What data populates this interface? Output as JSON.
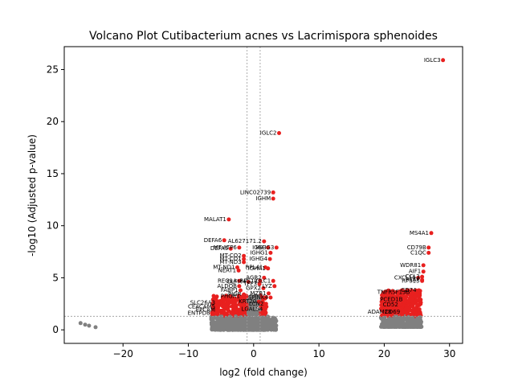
{
  "chart_data": {
    "type": "scatter",
    "title": "Volcano Plot Cutibacterium acnes vs Lacrimispora sphenoides",
    "xlabel": "log2 (fold change)",
    "ylabel": "-log10 (Adjusted p-value)",
    "xlim": [
      -29,
      32
    ],
    "ylim": [
      -1.3,
      27.2
    ],
    "xticks": [
      -20,
      -10,
      0,
      10,
      20,
      30
    ],
    "yticks": [
      0,
      5,
      10,
      15,
      20,
      25
    ],
    "thresholds": {
      "x": [
        -1,
        1
      ],
      "y": 1.3
    },
    "colors": {
      "significant": "#e8201f",
      "nonsignificant": "#808080",
      "threshold_line": "#999999"
    },
    "labeled_points": [
      {
        "label": "IGLC3",
        "x": 29.0,
        "y": 25.9
      },
      {
        "label": "IGLC2",
        "x": 3.9,
        "y": 18.9
      },
      {
        "label": "LINC02739",
        "x": 3.0,
        "y": 13.2
      },
      {
        "label": "IGHM",
        "x": 3.0,
        "y": 12.6
      },
      {
        "label": "MALAT1",
        "x": -3.8,
        "y": 10.6
      },
      {
        "label": "MS4A1",
        "x": 27.2,
        "y": 9.3
      },
      {
        "label": "DEFA6",
        "x": -4.5,
        "y": 8.6
      },
      {
        "label": "AL627171.2",
        "x": 1.6,
        "y": 8.5
      },
      {
        "label": "CD79B",
        "x": 26.8,
        "y": 7.9
      },
      {
        "label": "DEFA5",
        "x": -3.5,
        "y": 7.8
      },
      {
        "label": "MT-ATP6",
        "x": -2.2,
        "y": 7.9
      },
      {
        "label": "IGHG3",
        "x": 3.5,
        "y": 7.9
      },
      {
        "label": "IGKC",
        "x": 2.2,
        "y": 7.9
      },
      {
        "label": "IGHG1",
        "x": 2.6,
        "y": 7.4
      },
      {
        "label": "C1QC",
        "x": 26.8,
        "y": 7.4
      },
      {
        "label": "MT-CO2",
        "x": -1.5,
        "y": 7.1
      },
      {
        "label": "MT-CO1",
        "x": -1.5,
        "y": 6.8
      },
      {
        "label": "MT-ND3",
        "x": -1.5,
        "y": 6.5
      },
      {
        "label": "IGHG4",
        "x": 2.5,
        "y": 6.8
      },
      {
        "label": "WDR81",
        "x": 26.0,
        "y": 6.2
      },
      {
        "label": "MT-ND1",
        "x": -2.5,
        "y": 6.0
      },
      {
        "label": "NEAT1",
        "x": -2.3,
        "y": 5.7
      },
      {
        "label": "RPL41",
        "x": 1.8,
        "y": 6.0
      },
      {
        "label": "AIF1",
        "x": 26.0,
        "y": 5.6
      },
      {
        "label": "IGHA1",
        "x": 2.2,
        "y": 5.9
      },
      {
        "label": "CCL3",
        "x": 25.8,
        "y": 5.1
      },
      {
        "label": "CXCL10",
        "x": 25.2,
        "y": 5.0
      },
      {
        "label": "PSAP",
        "x": 25.8,
        "y": 4.8
      },
      {
        "label": "RPS15",
        "x": 25.8,
        "y": 4.7
      },
      {
        "label": "REG1A",
        "x": -2.2,
        "y": 4.7
      },
      {
        "label": "OLFM4",
        "x": -0.8,
        "y": 4.6
      },
      {
        "label": "RPS12",
        "x": 1.0,
        "y": 4.7
      },
      {
        "label": "IGLC1",
        "x": 3.0,
        "y": 4.7
      },
      {
        "label": "AGR2",
        "x": 1.6,
        "y": 5.0
      },
      {
        "label": "LYZ",
        "x": 3.2,
        "y": 4.2
      },
      {
        "label": "ALDOB",
        "x": -2.2,
        "y": 4.2
      },
      {
        "label": "FABP1",
        "x": -2.0,
        "y": 3.8
      },
      {
        "label": "TFF3",
        "x": 0.9,
        "y": 4.4
      },
      {
        "label": "GPX2",
        "x": 1.5,
        "y": 4.0
      },
      {
        "label": "MZB1",
        "x": 2.3,
        "y": 3.5
      },
      {
        "label": "TNFRSF13B",
        "x": 24.3,
        "y": 3.6
      },
      {
        "label": "CD74",
        "x": 25.3,
        "y": 3.8
      },
      {
        "label": "PIGR",
        "x": -1.5,
        "y": 3.4
      },
      {
        "label": "PHGR1",
        "x": -1.7,
        "y": 3.2
      },
      {
        "label": "SPINK4",
        "x": 2.6,
        "y": 3.1
      },
      {
        "label": "PCED1B",
        "x": 23.2,
        "y": 2.9
      },
      {
        "label": "SLC26A3",
        "x": -5.5,
        "y": 2.6
      },
      {
        "label": "CEACAM5",
        "x": -5.5,
        "y": 2.2
      },
      {
        "label": "EPCAM",
        "x": -5.5,
        "y": 1.9
      },
      {
        "label": "KRT20",
        "x": 0.8,
        "y": 2.7
      },
      {
        "label": "LCN2",
        "x": 1.9,
        "y": 2.5
      },
      {
        "label": "CD52",
        "x": 22.5,
        "y": 2.4
      },
      {
        "label": "ENTPD8",
        "x": -6.3,
        "y": 1.6
      },
      {
        "label": "LGALS4",
        "x": 1.8,
        "y": 2.0
      },
      {
        "label": "ADAM28",
        "x": 21.5,
        "y": 1.7
      },
      {
        "label": "CD69",
        "x": 22.8,
        "y": 1.7
      }
    ]
  }
}
